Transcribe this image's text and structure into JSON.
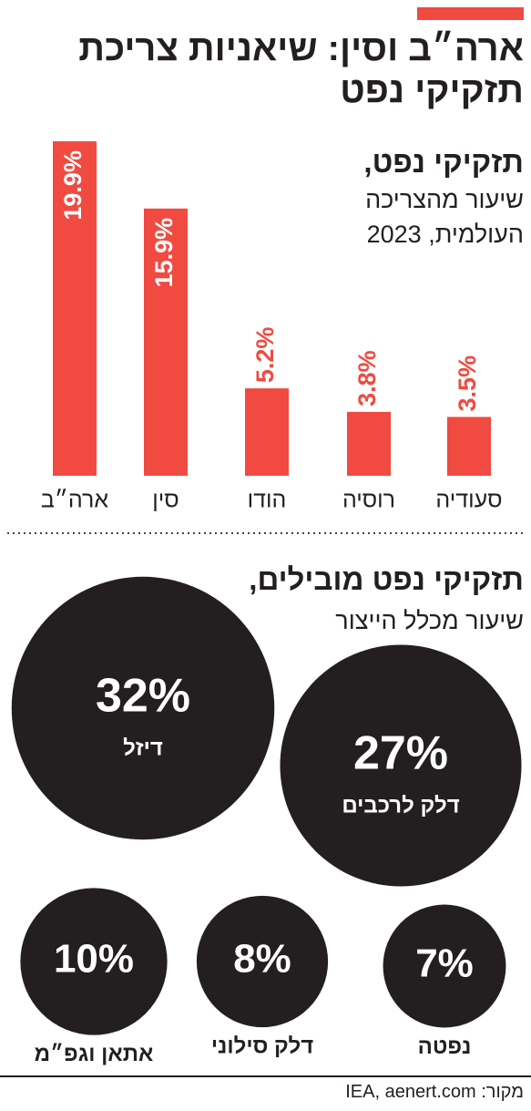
{
  "title": "ארה״ב וסין: שיאניות צריכת\nתזקיקי נפט",
  "chart_data": [
    {
      "type": "bar",
      "title": "תזקיקי נפט,",
      "subtitle": "שיעור מהצריכה\nהעולמית, 2023",
      "categories": [
        "ארה״ב",
        "סין",
        "הודו",
        "רוסיה",
        "סעודיה"
      ],
      "values": [
        19.9,
        15.9,
        5.2,
        3.8,
        3.5
      ],
      "value_labels": [
        "19.9%",
        "15.9%",
        "5.2%",
        "3.8%",
        "3.5%"
      ],
      "color": "#f04a41"
    },
    {
      "type": "bubble",
      "title": "תזקיקי נפט מובילים,",
      "subtitle": "שיעור מכלל הייצור",
      "categories": [
        "דיזל",
        "דלק לרכבים",
        "אתאן וגפ״מ",
        "דלק סילוני",
        "נפטה"
      ],
      "values": [
        32,
        27,
        10,
        8,
        7
      ],
      "value_labels": [
        "32%",
        "27%",
        "10%",
        "8%",
        "7%"
      ],
      "color": "#231f20"
    }
  ],
  "source": "מקור: IEA, aenert.com"
}
